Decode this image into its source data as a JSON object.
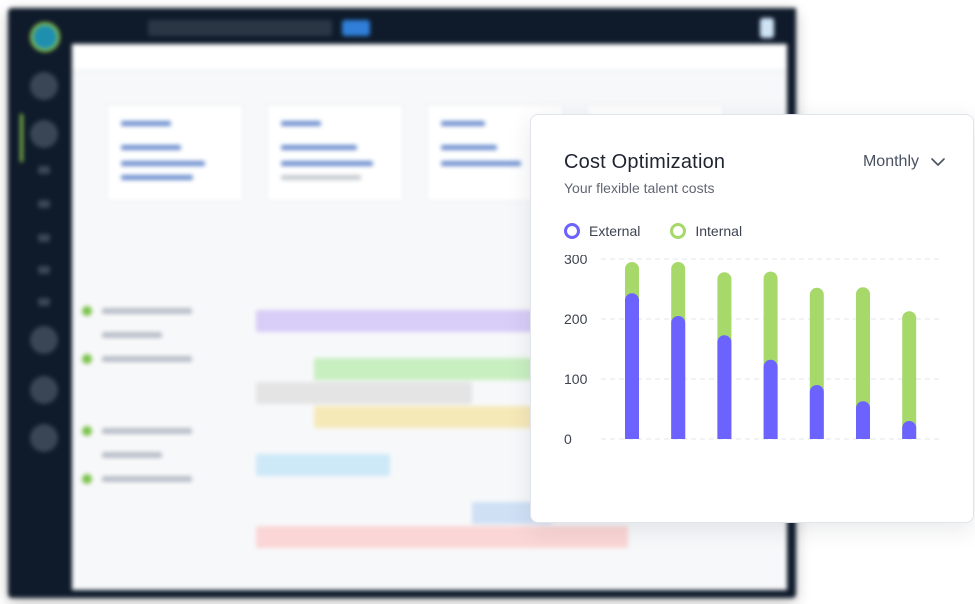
{
  "card": {
    "title": "Cost Optimization",
    "subtitle": "Your flexible talent costs",
    "period": {
      "selected": "Monthly",
      "icon": "chevron-down-icon"
    }
  },
  "colors": {
    "external": "#6c63ff",
    "internal": "#a6d86a",
    "grid": "#e2e4ea",
    "tick_text": "#3d4350"
  },
  "chart_data": {
    "type": "bar",
    "stacked": true,
    "title": "Cost Optimization",
    "subtitle": "Your flexible talent costs",
    "categories": [
      "",
      "",
      "",
      "",
      "",
      "",
      ""
    ],
    "series": [
      {
        "name": "External",
        "values": [
          243,
          205,
          173,
          132,
          90,
          63,
          30
        ]
      },
      {
        "name": "Internal",
        "values": [
          52,
          90,
          105,
          147,
          162,
          190,
          183
        ]
      }
    ],
    "ylim": [
      0,
      300
    ],
    "yticks": [
      "0",
      "100",
      "200",
      "300"
    ],
    "xlabel": "",
    "ylabel": "",
    "grid": true,
    "legend": "top-left"
  }
}
